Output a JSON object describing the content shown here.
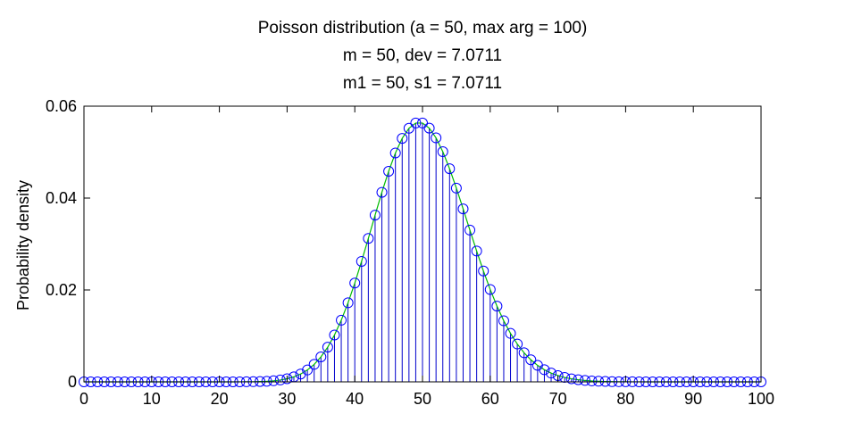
{
  "chart_data": {
    "type": "stem",
    "title_lines": [
      "Poisson distribution (a = 50, max arg = 100)",
      "m = 50, dev = 7.0711",
      "m1 = 50, s1 = 7.0711"
    ],
    "xlabel": "",
    "ylabel": "Probability density",
    "xlim": [
      0,
      100
    ],
    "ylim": [
      0,
      0.06
    ],
    "xticks": [
      0,
      10,
      20,
      30,
      40,
      50,
      60,
      70,
      80,
      90,
      100
    ],
    "xtick_labels": [
      "0",
      "10",
      "20",
      "30",
      "40",
      "50",
      "60",
      "70",
      "80",
      "90",
      "100"
    ],
    "yticks": [
      0,
      0.02,
      0.04,
      0.06
    ],
    "ytick_labels": [
      "0",
      "0.02",
      "0.04",
      "0.06"
    ],
    "grid": false,
    "distribution": {
      "name": "Poisson",
      "lambda": 50,
      "max_arg": 100
    },
    "x": {
      "start": 0,
      "end": 100,
      "step": 1
    },
    "stem_color": "#0000cc",
    "marker_color": "#0000ff",
    "line_color": "#00bb00"
  }
}
